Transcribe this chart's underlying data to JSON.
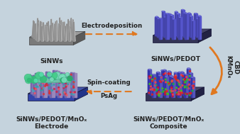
{
  "background_color": "#c5d3dd",
  "labels": {
    "sinws": "SiNWs",
    "sinws_pedot": "SiNWs/PEDOT",
    "sinws_pedot_mnox_electrode": "SiNWs/PEDOT/MnOₓ\nElectrode",
    "sinws_pedot_mnox_composite": "SiNWs/PEDOT/MnOₓ\nComposite",
    "arrow_top": "Electrodeposition",
    "arrow_bottom": "Spin-coating",
    "arrow_bottom2": "PsAg",
    "arrow_right": "KMnO₄",
    "arrow_right2": "CBD"
  },
  "arrow_color": "#e07820",
  "label_fontsize": 6.5,
  "arrow_label_fontsize": 6.2
}
